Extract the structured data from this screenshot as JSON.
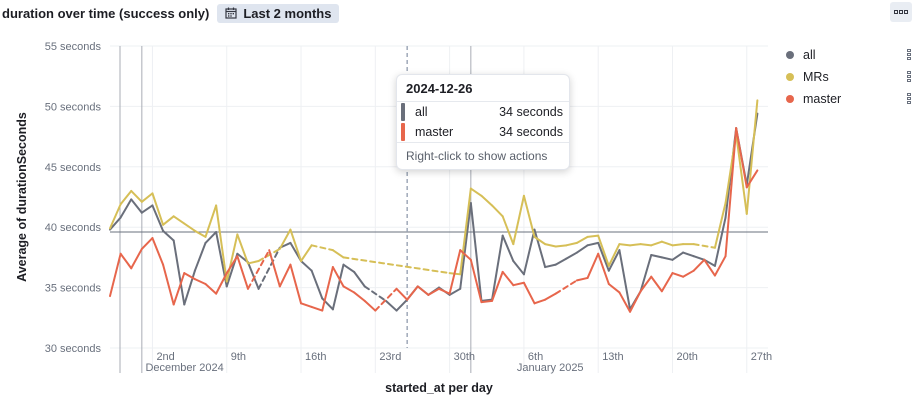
{
  "panel": {
    "title": "duration over time (success only)",
    "time_range": "Last 2 months",
    "calendar_icon": "calendar-icon",
    "menu_icon": "panel-menu-icon"
  },
  "colors": {
    "all": "#6a6f7b",
    "MRs": "#d6bf57",
    "master": "#e7664c",
    "gridline": "#eef0f3",
    "reference_line": "#69707d"
  },
  "legend": [
    {
      "name": "all",
      "color": "#6a6f7b"
    },
    {
      "name": "MRs",
      "color": "#d6bf57"
    },
    {
      "name": "master",
      "color": "#e7664c"
    }
  ],
  "tooltip": {
    "title": "2024-12-26",
    "rows": [
      {
        "name": "all",
        "value": "34 seconds",
        "color": "#6a6f7b"
      },
      {
        "name": "master",
        "value": "34 seconds",
        "color": "#e7664c"
      }
    ],
    "footer": "Right-click to show actions"
  },
  "chart_data": {
    "type": "line",
    "xlabel": "started_at per day",
    "ylabel": "Average of durationSeconds",
    "x_start": "2024-11-28",
    "x_end": "2025-01-29",
    "ylim": [
      30,
      55
    ],
    "yticks": [
      {
        "value": 55,
        "label": "55 seconds"
      },
      {
        "value": 50,
        "label": "50 seconds"
      },
      {
        "value": 45,
        "label": "45 seconds"
      },
      {
        "value": 40,
        "label": "40 seconds"
      },
      {
        "value": 35,
        "label": "35 seconds"
      },
      {
        "value": 30,
        "label": "30 seconds"
      }
    ],
    "xticks": [
      {
        "date": "2024-12-02",
        "label": "2nd",
        "sublabel": "December 2024"
      },
      {
        "date": "2024-12-09",
        "label": "9th",
        "sublabel": ""
      },
      {
        "date": "2024-12-16",
        "label": "16th",
        "sublabel": ""
      },
      {
        "date": "2024-12-23",
        "label": "23rd",
        "sublabel": ""
      },
      {
        "date": "2024-12-30",
        "label": "30th",
        "sublabel": ""
      },
      {
        "date": "2025-01-06",
        "label": "6th",
        "sublabel": "January 2025"
      },
      {
        "date": "2025-01-13",
        "label": "13th",
        "sublabel": ""
      },
      {
        "date": "2025-01-20",
        "label": "20th",
        "sublabel": ""
      },
      {
        "date": "2025-01-27",
        "label": "27th",
        "sublabel": ""
      }
    ],
    "month_boundaries": [
      "2024-12-01",
      "2025-01-01"
    ],
    "crosshair_date": "2024-12-26",
    "reference_y": 39.6,
    "series": [
      {
        "name": "all",
        "points": [
          [
            "2024-11-28",
            39.8
          ],
          [
            "2024-11-29",
            40.8
          ],
          [
            "2024-11-30",
            42.3
          ],
          [
            "2024-12-01",
            41.2
          ],
          [
            "2024-12-02",
            41.8
          ],
          [
            "2024-12-03",
            39.7
          ],
          [
            "2024-12-04",
            38.9
          ],
          [
            "2024-12-05",
            33.6
          ],
          [
            "2024-12-06",
            36.4
          ],
          [
            "2024-12-07",
            38.7
          ],
          [
            "2024-12-08",
            39.6
          ],
          [
            "2024-12-09",
            35.1
          ],
          [
            "2024-12-10",
            37.8
          ],
          [
            "2024-12-11",
            37.1
          ],
          [
            "2024-12-12",
            34.9
          ],
          [
            "2024-12-14",
            38.3
          ],
          [
            "2024-12-15",
            38.7
          ],
          [
            "2024-12-16",
            37.2
          ],
          [
            "2024-12-17",
            36.4
          ],
          [
            "2024-12-18",
            34.1
          ],
          [
            "2024-12-19",
            33.2
          ],
          [
            "2024-12-20",
            36.9
          ],
          [
            "2024-12-21",
            36.3
          ],
          [
            "2024-12-22",
            35.1
          ],
          [
            "2024-12-24",
            33.9
          ],
          [
            "2024-12-25",
            33.1
          ],
          [
            "2024-12-26",
            34.0
          ],
          [
            "2024-12-27",
            35.1
          ],
          [
            "2024-12-28",
            34.4
          ],
          [
            "2024-12-29",
            35.0
          ],
          [
            "2024-12-30",
            34.4
          ],
          [
            "2024-12-31",
            34.9
          ],
          [
            "2025-01-01",
            42.0
          ],
          [
            "2025-01-02",
            33.9
          ],
          [
            "2025-01-03",
            34.0
          ],
          [
            "2025-01-04",
            39.3
          ],
          [
            "2025-01-05",
            37.2
          ],
          [
            "2025-01-06",
            36.1
          ],
          [
            "2025-01-07",
            39.8
          ],
          [
            "2025-01-08",
            36.7
          ],
          [
            "2025-01-09",
            36.9
          ],
          [
            "2025-01-10",
            37.4
          ],
          [
            "2025-01-11",
            37.9
          ],
          [
            "2025-01-12",
            38.5
          ],
          [
            "2025-01-13",
            38.7
          ],
          [
            "2025-01-14",
            36.4
          ],
          [
            "2025-01-15",
            38.1
          ],
          [
            "2025-01-16",
            33.2
          ],
          [
            "2025-01-17",
            34.7
          ],
          [
            "2025-01-18",
            37.7
          ],
          [
            "2025-01-19",
            37.5
          ],
          [
            "2025-01-20",
            37.3
          ],
          [
            "2025-01-21",
            37.9
          ],
          [
            "2025-01-22",
            37.6
          ],
          [
            "2025-01-23",
            37.3
          ],
          [
            "2025-01-24",
            36.8
          ],
          [
            "2025-01-25",
            40.8
          ],
          [
            "2025-01-26",
            48.2
          ],
          [
            "2025-01-27",
            43.5
          ],
          [
            "2025-01-28",
            49.4
          ]
        ]
      },
      {
        "name": "MRs",
        "points": [
          [
            "2024-11-28",
            39.9
          ],
          [
            "2024-11-29",
            41.9
          ],
          [
            "2024-11-30",
            43.0
          ],
          [
            "2024-12-01",
            42.1
          ],
          [
            "2024-12-02",
            42.8
          ],
          [
            "2024-12-03",
            40.2
          ],
          [
            "2024-12-04",
            40.9
          ],
          [
            "2024-12-05",
            40.3
          ],
          [
            "2024-12-06",
            39.7
          ],
          [
            "2024-12-07",
            39.2
          ],
          [
            "2024-12-08",
            41.8
          ],
          [
            "2024-12-09",
            35.5
          ],
          [
            "2024-12-10",
            39.4
          ],
          [
            "2024-12-11",
            37.0
          ],
          [
            "2024-12-12",
            37.2
          ],
          [
            "2024-12-14",
            38.2
          ],
          [
            "2024-12-15",
            39.8
          ],
          [
            "2024-12-16",
            37.2
          ],
          [
            "2024-12-17",
            38.5
          ],
          [
            "2024-12-19",
            38.1
          ],
          [
            "2024-12-20",
            37.5
          ],
          [
            "2024-12-30",
            36.2
          ],
          [
            "2024-12-31",
            36.1
          ],
          [
            "2025-01-01",
            43.2
          ],
          [
            "2025-01-02",
            42.6
          ],
          [
            "2025-01-03",
            41.8
          ],
          [
            "2025-01-04",
            40.9
          ],
          [
            "2025-01-05",
            38.6
          ],
          [
            "2025-01-06",
            42.6
          ],
          [
            "2025-01-07",
            39.2
          ],
          [
            "2025-01-08",
            38.6
          ],
          [
            "2025-01-09",
            38.4
          ],
          [
            "2025-01-10",
            38.5
          ],
          [
            "2025-01-11",
            38.7
          ],
          [
            "2025-01-12",
            39.2
          ],
          [
            "2025-01-13",
            39.3
          ],
          [
            "2025-01-14",
            36.8
          ],
          [
            "2025-01-15",
            38.6
          ],
          [
            "2025-01-16",
            38.5
          ],
          [
            "2025-01-17",
            38.6
          ],
          [
            "2025-01-18",
            38.5
          ],
          [
            "2025-01-19",
            38.8
          ],
          [
            "2025-01-20",
            38.5
          ],
          [
            "2025-01-21",
            38.6
          ],
          [
            "2025-01-22",
            38.6
          ],
          [
            "2025-01-24",
            38.3
          ],
          [
            "2025-01-25",
            42.0
          ],
          [
            "2025-01-26",
            47.7
          ],
          [
            "2025-01-27",
            41.1
          ],
          [
            "2025-01-28",
            50.5
          ]
        ]
      },
      {
        "name": "master",
        "points": [
          [
            "2024-11-28",
            34.3
          ],
          [
            "2024-11-29",
            37.8
          ],
          [
            "2024-11-30",
            36.6
          ],
          [
            "2024-12-01",
            38.2
          ],
          [
            "2024-12-02",
            39.1
          ],
          [
            "2024-12-03",
            36.9
          ],
          [
            "2024-12-04",
            33.6
          ],
          [
            "2024-12-05",
            36.2
          ],
          [
            "2024-12-06",
            35.7
          ],
          [
            "2024-12-07",
            35.3
          ],
          [
            "2024-12-08",
            34.5
          ],
          [
            "2024-12-09",
            36.2
          ],
          [
            "2024-12-10",
            37.6
          ],
          [
            "2024-12-11",
            34.9
          ],
          [
            "2024-12-13",
            38.1
          ],
          [
            "2024-12-14",
            35.1
          ],
          [
            "2024-12-15",
            36.9
          ],
          [
            "2024-12-16",
            33.7
          ],
          [
            "2024-12-17",
            33.4
          ],
          [
            "2024-12-18",
            33.1
          ],
          [
            "2024-12-19",
            36.7
          ],
          [
            "2024-12-20",
            35.1
          ],
          [
            "2024-12-21",
            34.6
          ],
          [
            "2024-12-22",
            33.9
          ],
          [
            "2024-12-23",
            33.1
          ],
          [
            "2024-12-25",
            34.9
          ],
          [
            "2024-12-26",
            34.0
          ],
          [
            "2024-12-27",
            35.1
          ],
          [
            "2024-12-28",
            34.4
          ],
          [
            "2024-12-29",
            34.9
          ],
          [
            "2024-12-30",
            34.5
          ],
          [
            "2024-12-31",
            38.1
          ],
          [
            "2025-01-01",
            37.3
          ],
          [
            "2025-01-02",
            33.8
          ],
          [
            "2025-01-03",
            33.9
          ],
          [
            "2025-01-04",
            36.3
          ],
          [
            "2025-01-05",
            35.2
          ],
          [
            "2025-01-06",
            35.4
          ],
          [
            "2025-01-07",
            33.7
          ],
          [
            "2025-01-08",
            34.0
          ],
          [
            "2025-01-09",
            34.5
          ],
          [
            "2025-01-11",
            35.6
          ],
          [
            "2025-01-12",
            35.8
          ],
          [
            "2025-01-13",
            37.8
          ],
          [
            "2025-01-14",
            35.3
          ],
          [
            "2025-01-15",
            34.6
          ],
          [
            "2025-01-16",
            33.0
          ],
          [
            "2025-01-17",
            34.7
          ],
          [
            "2025-01-18",
            35.9
          ],
          [
            "2025-01-19",
            34.7
          ],
          [
            "2025-01-20",
            36.2
          ],
          [
            "2025-01-21",
            35.9
          ],
          [
            "2025-01-22",
            36.4
          ],
          [
            "2025-01-23",
            37.3
          ],
          [
            "2025-01-24",
            36.0
          ],
          [
            "2025-01-25",
            37.6
          ],
          [
            "2025-01-26",
            48.2
          ],
          [
            "2025-01-27",
            43.3
          ],
          [
            "2025-01-28",
            44.7
          ]
        ]
      }
    ]
  }
}
